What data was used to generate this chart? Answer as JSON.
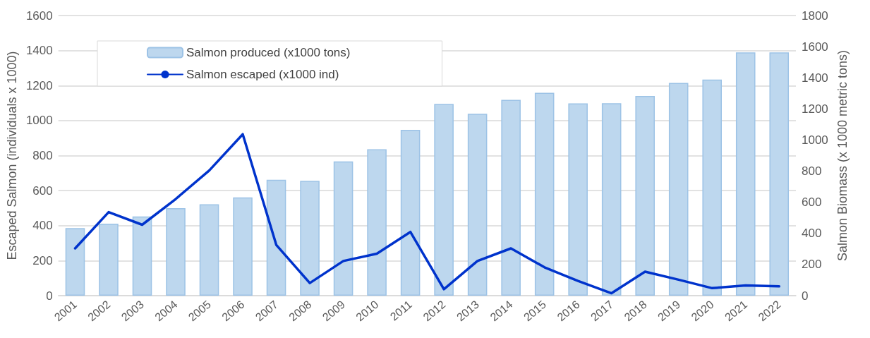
{
  "chart_data": {
    "type": "bar",
    "ylabel": "Escaped Salmon (individuals x 1000)",
    "y2label": "Salmon Biomass (x 1000 metric tons)",
    "categories": [
      "2001",
      "2002",
      "2003",
      "2004",
      "2005",
      "2006",
      "2007",
      "2008",
      "2009",
      "2010",
      "2011",
      "2012",
      "2013",
      "2014",
      "2015",
      "2016",
      "2017",
      "2018",
      "2019",
      "2020",
      "2021",
      "2022"
    ],
    "series": [
      {
        "name": "Salmon produced (x1000 tons)",
        "axis": "y2",
        "color": "#bdd7ee",
        "values": [
          434,
          462,
          509,
          562,
          587,
          631,
          745,
          738,
          863,
          941,
          1066,
          1232,
          1169,
          1258,
          1304,
          1235,
          1237,
          1283,
          1367,
          1388,
          1563,
          1563
        ]
      },
      {
        "name": "Salmon escaped (x1000 ind)",
        "type": "line",
        "color": "#0033cc",
        "values": [
          270,
          477,
          405,
          552,
          715,
          922,
          290,
          72,
          198,
          240,
          364,
          37,
          198,
          270,
          162,
          84,
          14,
          137,
          91,
          43,
          58,
          53
        ]
      }
    ],
    "ylim": [
      0,
      1600
    ],
    "yticks": [
      0,
      200,
      400,
      600,
      800,
      1000,
      1200,
      1400,
      1600
    ],
    "y2lim": [
      0,
      1800
    ],
    "y2ticks": [
      0,
      200,
      400,
      600,
      800,
      1000,
      1200,
      1400,
      1600,
      1800
    ],
    "grid": "y",
    "legend": "top left",
    "marker": "none",
    "line_style": "solid"
  }
}
